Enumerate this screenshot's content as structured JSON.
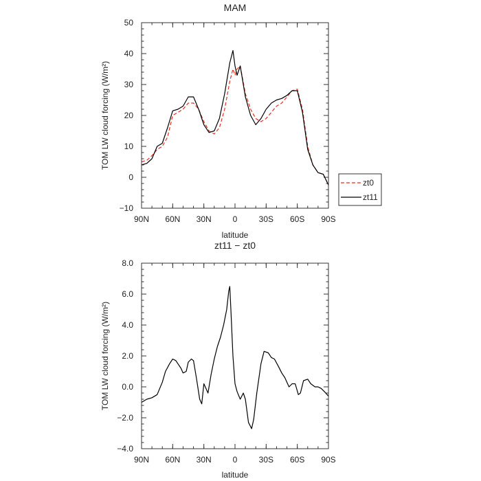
{
  "chart_data": [
    {
      "type": "line",
      "title": "MAM",
      "xlabel": "latitude",
      "ylabel": "TOM LW cloud forcing (W/m²)",
      "xlim": [
        90,
        -90
      ],
      "ylim": [
        -10,
        50
      ],
      "xticks": [
        90,
        60,
        30,
        0,
        -30,
        -60,
        -90
      ],
      "xtick_labels": [
        "90N",
        "60N",
        "30N",
        "0",
        "30S",
        "60S",
        "90S"
      ],
      "yticks": [
        -10,
        0,
        10,
        20,
        30,
        40,
        50
      ],
      "ytick_labels": [
        "−10",
        "0",
        "10",
        "20",
        "30",
        "40",
        "50"
      ],
      "legend": {
        "placement": "right-lower",
        "entries": [
          "zt0",
          "zt11"
        ]
      },
      "colors": {
        "zt0": "#e03020",
        "zt11": "#000000"
      },
      "x": [
        90,
        85,
        80,
        75,
        70,
        65,
        60,
        55,
        50,
        45,
        40,
        35,
        30,
        25,
        20,
        15,
        10,
        5,
        2,
        0,
        -2,
        -5,
        -10,
        -15,
        -20,
        -25,
        -30,
        -35,
        -40,
        -45,
        -50,
        -55,
        -60,
        -65,
        -70,
        -75,
        -80,
        -85,
        -90
      ],
      "series": [
        {
          "name": "zt0",
          "values": [
            5,
            5.5,
            7,
            9,
            10,
            13,
            20,
            21,
            22,
            24,
            24,
            22,
            18,
            15,
            14,
            16,
            22,
            31,
            35,
            33,
            35,
            36,
            27,
            22,
            19,
            18,
            19,
            21,
            23,
            24,
            26,
            28,
            28.5,
            22,
            10,
            4,
            1.5,
            1,
            -2.5
          ]
        },
        {
          "name": "zt11",
          "values": [
            4,
            4.5,
            6,
            10,
            11,
            16,
            21.5,
            22,
            23,
            26,
            26,
            22,
            17,
            14.5,
            15,
            19,
            27,
            37,
            41,
            36,
            33,
            36,
            26,
            20,
            17,
            19,
            22,
            24,
            25,
            25.5,
            26.5,
            28,
            28,
            21,
            9,
            4,
            1.5,
            1,
            -2.5
          ]
        }
      ]
    },
    {
      "type": "line",
      "title": "zt11 − zt0",
      "xlabel": "latitude",
      "ylabel": "TOM LW cloud forcing (W/m²)",
      "xlim": [
        90,
        -90
      ],
      "ylim": [
        -4,
        8
      ],
      "xticks": [
        90,
        60,
        30,
        0,
        -30,
        -60,
        -90
      ],
      "xtick_labels": [
        "90N",
        "60N",
        "30N",
        "0",
        "30S",
        "60S",
        "90S"
      ],
      "yticks": [
        -4,
        -2,
        0,
        2,
        4,
        6,
        8
      ],
      "ytick_labels": [
        "−4.0",
        "−2.0",
        "0.0",
        "2.0",
        "4.0",
        "6.0",
        "8.0"
      ],
      "color": "#000000",
      "x": [
        90,
        85,
        80,
        75,
        70,
        67,
        63,
        60,
        57,
        55,
        52,
        50,
        47,
        45,
        42,
        40,
        37,
        34,
        32,
        30,
        28,
        26,
        23,
        20,
        17,
        14,
        11,
        8,
        6,
        5,
        4,
        2,
        0,
        -2,
        -5,
        -8,
        -10,
        -13,
        -16,
        -18,
        -21,
        -25,
        -28,
        -32,
        -35,
        -38,
        -42,
        -45,
        -48,
        -52,
        -55,
        -58,
        -61,
        -63,
        -66,
        -70,
        -73,
        -77,
        -80,
        -83,
        -86,
        -90
      ],
      "values": [
        -1,
        -0.8,
        -0.7,
        -0.5,
        0.3,
        1,
        1.5,
        1.8,
        1.7,
        1.5,
        1.2,
        0.9,
        1.0,
        1.6,
        1.8,
        1.7,
        0.5,
        -0.8,
        -1.1,
        0.2,
        -0.1,
        -0.4,
        0.8,
        1.8,
        2.6,
        3.2,
        4.0,
        5.0,
        6.2,
        6.5,
        5.0,
        2.0,
        0.2,
        -0.3,
        -0.8,
        -0.4,
        -0.8,
        -2.3,
        -2.7,
        -2.1,
        -0.4,
        1.5,
        2.3,
        2.2,
        1.9,
        1.8,
        1.3,
        0.9,
        0.6,
        0.0,
        0.2,
        0.2,
        -0.5,
        -0.4,
        0.4,
        0.5,
        0.2,
        0.0,
        0.0,
        -0.1,
        -0.3,
        -0.6
      ]
    }
  ]
}
